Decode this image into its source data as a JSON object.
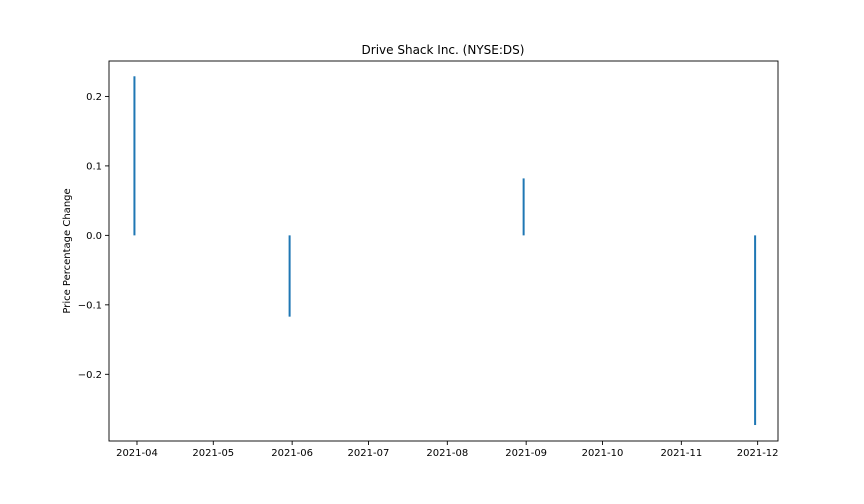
{
  "chart_data": {
    "type": "bar",
    "title": "Drive Shack Inc. (NYSE:DS)",
    "xlabel": "",
    "ylabel": "Price Percentage Change",
    "x_axis_type": "date",
    "xlim": [
      "2021-03-21",
      "2021-12-09"
    ],
    "ylim": [
      -0.296,
      0.251
    ],
    "x_ticks": [
      "2021-04-01",
      "2021-05-01",
      "2021-06-01",
      "2021-07-01",
      "2021-08-01",
      "2021-09-01",
      "2021-10-01",
      "2021-11-01",
      "2021-12-01"
    ],
    "x_tick_labels": [
      "2021-04",
      "2021-05",
      "2021-06",
      "2021-07",
      "2021-08",
      "2021-09",
      "2021-10",
      "2021-11",
      "2021-12"
    ],
    "y_ticks": [
      0.2,
      0.1,
      0.0,
      -0.1,
      -0.2
    ],
    "y_tick_labels": [
      "0.2",
      "0.1",
      "0.0",
      "−0.1",
      "−0.2"
    ],
    "grid": false,
    "legend": "none",
    "color": "#1f77b4",
    "series": [
      {
        "x": [
          "2021-03-31",
          "2021-05-31",
          "2021-08-31",
          "2021-11-30"
        ],
        "values": [
          0.229,
          -0.117,
          0.082,
          -0.273
        ]
      }
    ]
  }
}
